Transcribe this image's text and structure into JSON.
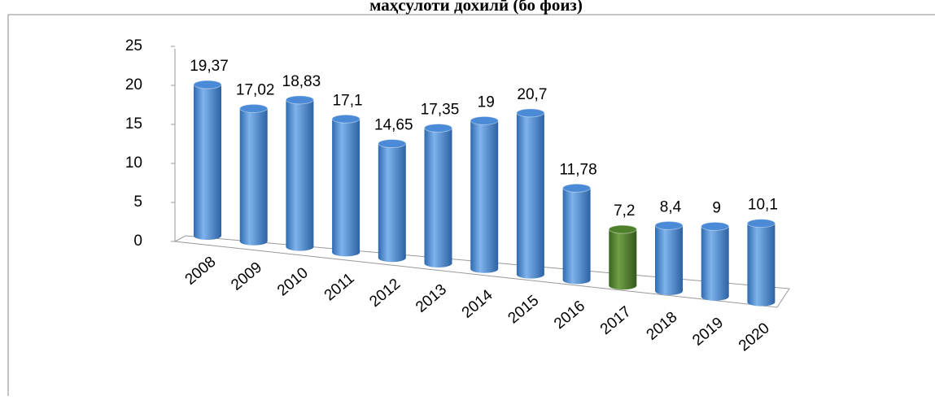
{
  "chart_data": {
    "type": "bar3d",
    "title": "маҳсулоти дохилӣ  (бо фоиз)",
    "categories": [
      "2008",
      "2009",
      "2010",
      "2011",
      "2012",
      "2013",
      "2014",
      "2015",
      "2016",
      "2017",
      "2018",
      "2019",
      "2020"
    ],
    "values": [
      19.37,
      17.02,
      18.83,
      17.1,
      14.65,
      17.35,
      19,
      20.7,
      11.78,
      7.2,
      8.4,
      9,
      10.1
    ],
    "value_labels": [
      "19,37",
      "17,02",
      "18,83",
      "17,1",
      "14,65",
      "17,35",
      "19",
      "20,7",
      "11,78",
      "7,2",
      "8,4",
      "9",
      "10,1"
    ],
    "colors": [
      "#4a8ad6",
      "#4a8ad6",
      "#4a8ad6",
      "#4a8ad6",
      "#4a8ad6",
      "#4a8ad6",
      "#4a8ad6",
      "#4a8ad6",
      "#4a8ad6",
      "#4e7f2a",
      "#4a8ad6",
      "#4a8ad6",
      "#4a8ad6"
    ],
    "ylim": [
      0,
      25
    ],
    "yticks": [
      0,
      5,
      10,
      15,
      20,
      25
    ]
  }
}
